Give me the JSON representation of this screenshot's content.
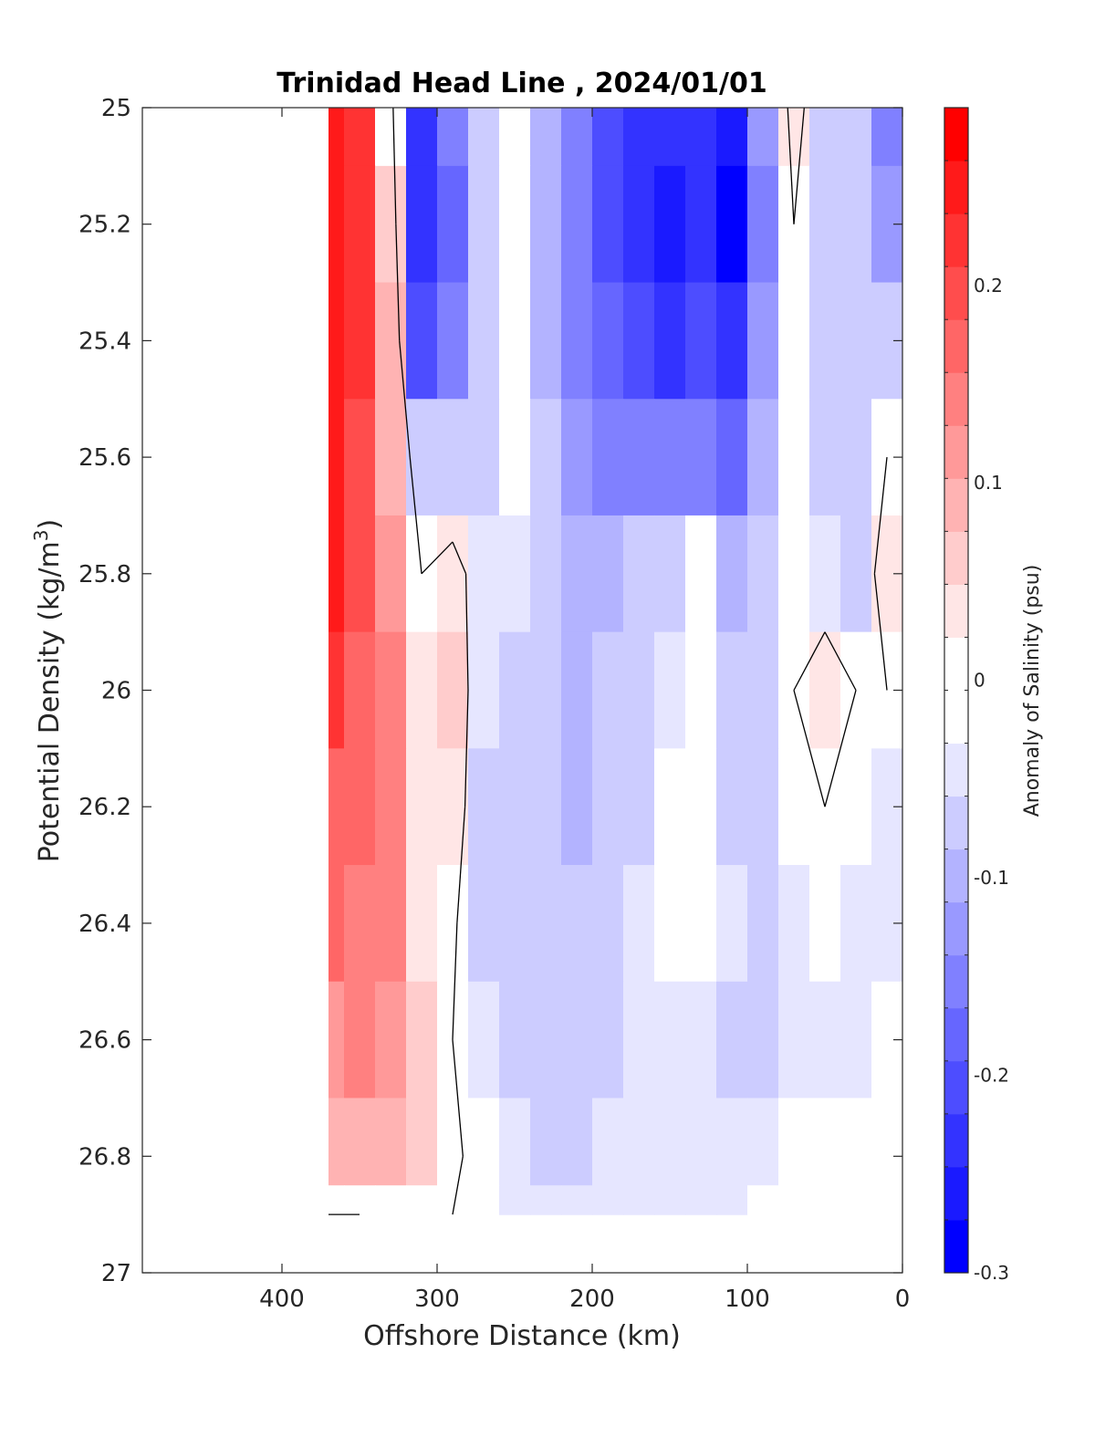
{
  "chart_data": {
    "type": "heatmap",
    "title": "Trinidad Head Line , 2024/01/01",
    "xlabel": "Offshore Distance (km)",
    "ylabel": "Potential Density (kg/m",
    "ylabel_sup": "3",
    "ylabel_end": ")",
    "xlim": [
      490,
      0
    ],
    "ylim": [
      25,
      27
    ],
    "y_reversed": true,
    "xticks": [
      400,
      300,
      200,
      100,
      0
    ],
    "yticks": [
      25,
      25.2,
      25.4,
      25.6,
      25.8,
      26,
      26.2,
      26.4,
      26.6,
      26.8,
      27
    ],
    "x_distance_km": [
      370,
      350,
      330,
      310,
      290,
      270,
      250,
      230,
      210,
      190,
      170,
      150,
      130,
      110,
      90,
      70,
      50,
      30,
      10
    ],
    "y_density": [
      25.0,
      25.2,
      25.4,
      25.6,
      25.8,
      26.0,
      26.2,
      26.4,
      26.6,
      26.8,
      26.9
    ],
    "salinity_anomaly_psu": [
      [
        0.24,
        0.21,
        0.02,
        -0.22,
        -0.16,
        -0.06,
        -0.03,
        -0.1,
        -0.14,
        -0.2,
        -0.24,
        -0.24,
        -0.24,
        -0.26,
        -0.12,
        0.03,
        -0.06,
        -0.06,
        -0.16
      ],
      [
        0.25,
        0.22,
        0.05,
        -0.24,
        -0.18,
        -0.06,
        -0.02,
        -0.1,
        -0.14,
        -0.2,
        -0.24,
        -0.26,
        -0.24,
        -0.28,
        -0.16,
        0.0,
        -0.06,
        -0.06,
        -0.12
      ],
      [
        0.25,
        0.22,
        0.08,
        -0.2,
        -0.16,
        -0.06,
        -0.02,
        -0.1,
        -0.14,
        -0.18,
        -0.2,
        -0.22,
        -0.2,
        -0.24,
        -0.12,
        -0.02,
        -0.06,
        -0.06,
        -0.06
      ],
      [
        0.24,
        0.2,
        0.1,
        -0.06,
        -0.08,
        -0.06,
        -0.02,
        -0.08,
        -0.12,
        -0.14,
        -0.14,
        -0.14,
        -0.16,
        -0.18,
        -0.1,
        -0.02,
        -0.06,
        -0.06,
        0.0
      ],
      [
        0.24,
        0.2,
        0.12,
        0.0,
        0.03,
        -0.04,
        -0.04,
        -0.08,
        -0.1,
        -0.1,
        -0.08,
        -0.06,
        -0.02,
        -0.1,
        -0.08,
        0.0,
        -0.04,
        -0.06,
        0.04
      ],
      [
        0.21,
        0.17,
        0.14,
        0.03,
        0.05,
        -0.05,
        -0.06,
        -0.08,
        -0.1,
        -0.08,
        -0.06,
        -0.04,
        0.0,
        -0.08,
        -0.06,
        0.0,
        0.04,
        0.0,
        0.0
      ],
      [
        0.18,
        0.16,
        0.14,
        0.03,
        0.04,
        -0.06,
        -0.06,
        -0.08,
        -0.1,
        -0.08,
        -0.06,
        -0.02,
        0.0,
        -0.06,
        -0.06,
        -0.02,
        0.0,
        -0.02,
        -0.04
      ],
      [
        0.16,
        0.15,
        0.13,
        0.04,
        0.01,
        -0.06,
        -0.06,
        -0.08,
        -0.08,
        -0.06,
        -0.04,
        -0.02,
        0.0,
        -0.04,
        -0.06,
        -0.04,
        -0.02,
        -0.04,
        -0.04
      ],
      [
        0.12,
        0.14,
        0.12,
        0.06,
        0.0,
        -0.05,
        -0.06,
        -0.08,
        -0.08,
        -0.06,
        -0.04,
        -0.04,
        -0.04,
        -0.06,
        -0.06,
        -0.04,
        -0.04,
        -0.04,
        -0.02
      ],
      [
        0.08,
        0.1,
        0.1,
        0.05,
        0.01,
        -0.02,
        -0.04,
        -0.06,
        -0.06,
        -0.04,
        -0.04,
        -0.04,
        -0.04,
        -0.04,
        -0.04,
        -0.02,
        -0.02,
        -0.02,
        0.0
      ],
      [
        0.0,
        0.0,
        0.02,
        0.02,
        0.0,
        -0.02,
        -0.04,
        -0.04,
        -0.04,
        -0.04,
        -0.04,
        -0.04,
        -0.04,
        -0.04,
        -0.02,
        0.0,
        0.0,
        0.0,
        0.0
      ]
    ],
    "colorbar": {
      "label": "Anomaly of Salinity (psu)",
      "range": [
        -0.3,
        0.29
      ],
      "ticks": [
        "0.2",
        "0.1",
        "0",
        "-0.1",
        "-0.2",
        "-0.3"
      ],
      "tick_values": [
        0.2,
        0.1,
        0,
        -0.1,
        -0.2,
        -0.3
      ],
      "colors_low_to_high": [
        "#0000ff",
        "#1a1aff",
        "#3333ff",
        "#4d4dff",
        "#6666ff",
        "#8080ff",
        "#9999ff",
        "#b3b3ff",
        "#ccccff",
        "#e6e6ff",
        "#ffffff",
        "#ffffff",
        "#ffe6e6",
        "#ffcccc",
        "#ffb3b3",
        "#ff9999",
        "#ff8080",
        "#ff6666",
        "#ff4d4d",
        "#ff3333",
        "#ff1a1a",
        "#ff0000"
      ],
      "levels": 22
    },
    "grid": false,
    "legend": "none"
  }
}
